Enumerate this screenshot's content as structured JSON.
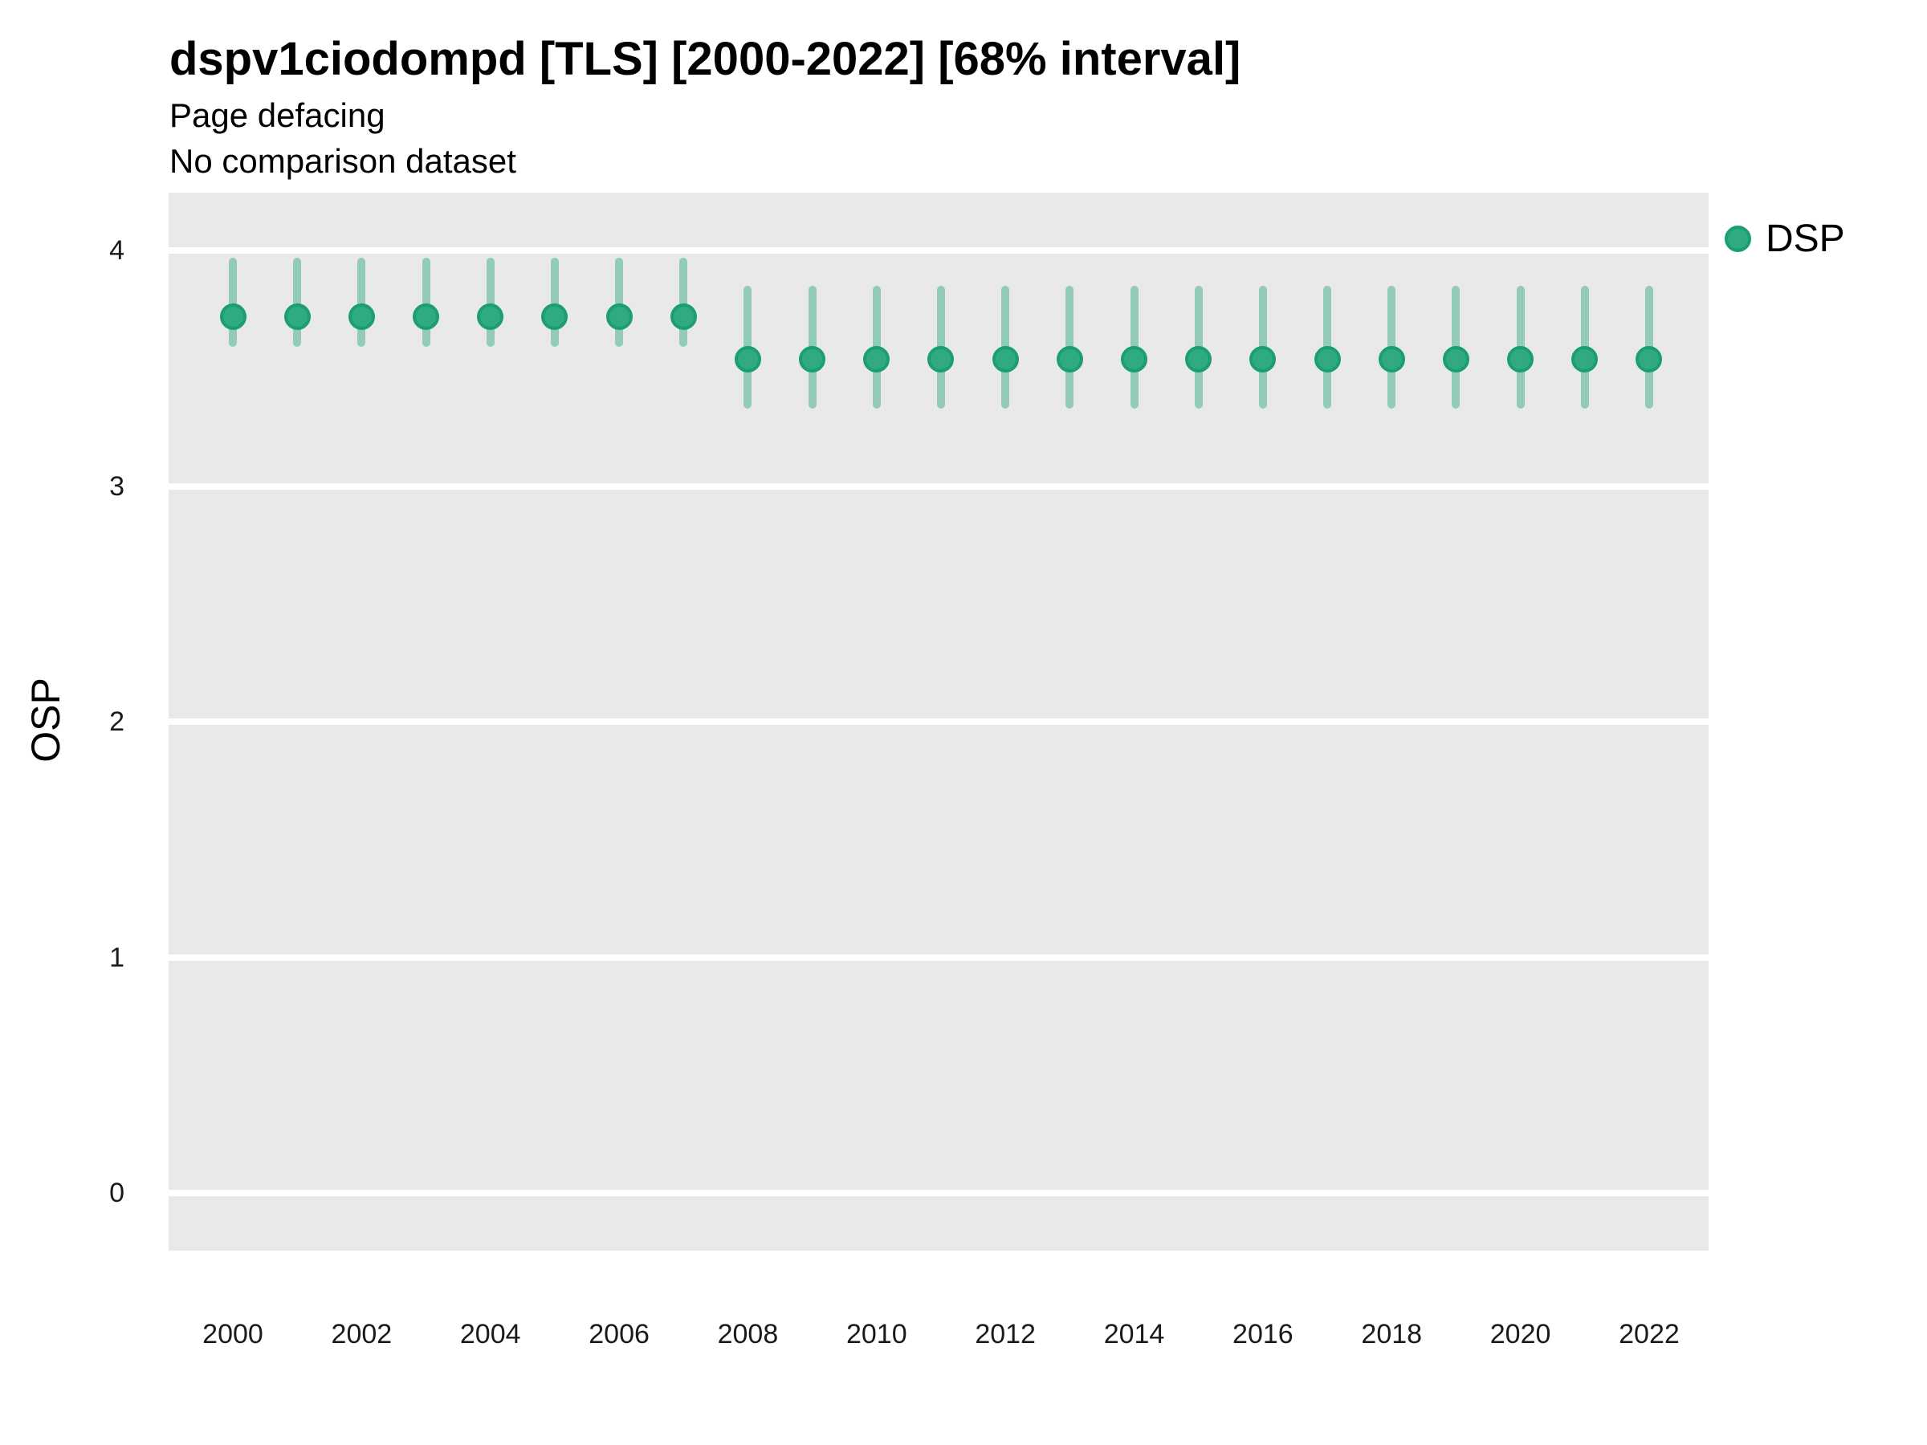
{
  "title": "dspv1ciodompd [TLS] [2000-2022] [68% interval]",
  "subtitle": "Page defacing",
  "subtitle2": "No comparison dataset",
  "y_axis_title": "OSP",
  "legend": {
    "position": "right",
    "items": [
      {
        "label": "DSP",
        "marker": "circle-icon",
        "color": "#2faa82"
      }
    ]
  },
  "colors": {
    "panel_background": "#e9e9e9",
    "gridline": "#ffffff",
    "point_fill": "#2faa82",
    "point_stroke": "#1b9e71",
    "interval_bar": "rgba(42,166,126,0.45)"
  },
  "chart_data": {
    "type": "scatter",
    "subtype": "point-interval",
    "title": "dspv1ciodompd [TLS] [2000-2022] [68% interval]",
    "subtitle": "Page defacing",
    "note": "No comparison dataset",
    "interval": "68%",
    "xlabel": "",
    "ylabel": "OSP",
    "x": [
      2000,
      2001,
      2002,
      2003,
      2004,
      2005,
      2006,
      2007,
      2008,
      2009,
      2010,
      2011,
      2012,
      2013,
      2014,
      2015,
      2016,
      2017,
      2018,
      2019,
      2020,
      2021,
      2022
    ],
    "series": [
      {
        "name": "DSP",
        "values": [
          3.72,
          3.72,
          3.72,
          3.72,
          3.72,
          3.72,
          3.72,
          3.72,
          3.54,
          3.54,
          3.54,
          3.54,
          3.54,
          3.54,
          3.54,
          3.54,
          3.54,
          3.54,
          3.54,
          3.54,
          3.54,
          3.54,
          3.54
        ],
        "lower_68": [
          3.59,
          3.59,
          3.59,
          3.59,
          3.59,
          3.59,
          3.59,
          3.59,
          3.33,
          3.33,
          3.33,
          3.33,
          3.33,
          3.33,
          3.33,
          3.33,
          3.33,
          3.33,
          3.33,
          3.33,
          3.33,
          3.33,
          3.33
        ],
        "upper_68": [
          3.97,
          3.97,
          3.97,
          3.97,
          3.97,
          3.97,
          3.97,
          3.97,
          3.85,
          3.85,
          3.85,
          3.85,
          3.85,
          3.85,
          3.85,
          3.85,
          3.85,
          3.85,
          3.85,
          3.85,
          3.85,
          3.85,
          3.85
        ]
      }
    ],
    "ylim": [
      -0.2,
      4.25
    ],
    "yticks": [
      0,
      1,
      2,
      3,
      4
    ],
    "xticks": [
      2000,
      2002,
      2004,
      2006,
      2008,
      2010,
      2012,
      2014,
      2016,
      2018,
      2020,
      2022
    ],
    "grid": "horizontal-major-only",
    "legend_position": "right"
  }
}
